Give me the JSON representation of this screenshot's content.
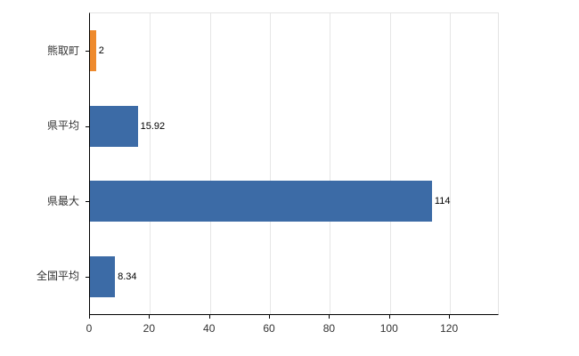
{
  "chart_data": {
    "type": "bar",
    "orientation": "horizontal",
    "title": "",
    "categories": [
      "熊取町",
      "県平均",
      "県最大",
      "全国平均"
    ],
    "values": [
      2,
      15.92,
      114,
      8.34
    ],
    "value_labels": [
      "2",
      "15.92",
      "114",
      "8.34"
    ],
    "bar_colors": [
      "#ee8a2d",
      "#3c6ba6",
      "#3c6ba6",
      "#3c6ba6"
    ],
    "xlim": [
      0,
      136
    ],
    "x_ticks": [
      0,
      20,
      40,
      60,
      80,
      100,
      120
    ],
    "grid": true,
    "legend": false,
    "axis_color": "#000000",
    "gridline_color": "#e6e6e6"
  }
}
